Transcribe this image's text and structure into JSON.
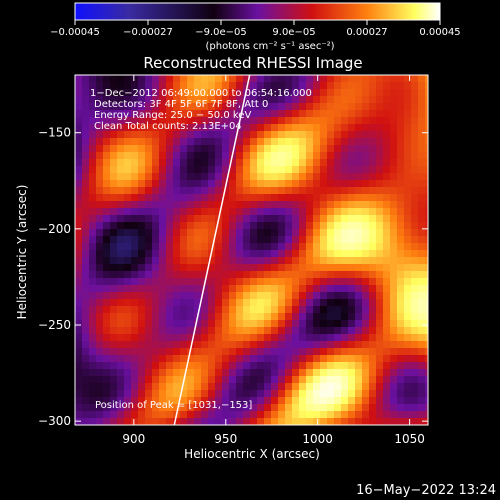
{
  "chart_data": {
    "type": "heatmap",
    "title": "Reconstructed RHESSI Image",
    "xlabel": "Heliocentric X (arcsec)",
    "ylabel": "Heliocentric Y (arcsec)",
    "xlim": [
      868,
      1060
    ],
    "ylim": [
      -302,
      -120
    ],
    "x_ticks": [
      900,
      950,
      1000,
      1050
    ],
    "x_tick_labels": [
      "900",
      "950",
      "1000",
      "1050"
    ],
    "y_ticks": [
      -150,
      -200,
      -250,
      -300
    ],
    "y_tick_labels": [
      "−150",
      "−200",
      "−250",
      "−300"
    ],
    "colorbar": {
      "min": -0.00045,
      "max": 0.00045,
      "ticks": [
        -0.00045,
        -0.00027,
        -9e-05,
        9e-05,
        0.00027,
        0.00045
      ],
      "tick_labels": [
        "−0.00045",
        "−0.00027",
        "−9.0e−05",
        "9.0e−05",
        "0.00027",
        "0.00045"
      ],
      "unit_label": "(photons cm⁻² s⁻¹ asec⁻²)",
      "colormap": [
        "#1010ff",
        "#3a2aa0",
        "#100010",
        "#6a10a0",
        "#d01010",
        "#ff8010",
        "#ffff60",
        "#ffffff"
      ]
    },
    "annotations": [
      "1−Dec−2012 06:49:00.000 to 06:54:16.000",
      "Detectors: 3F 4F 5F 6F 7F 8F, Att 0",
      "Energy Range: 25.0 − 50.0 keV",
      "Clean    Total counts: 2.13E+04"
    ],
    "peak_label": "Position of Peak = [1031,−153]",
    "peak": [
      1031,
      -153
    ],
    "limb_line": {
      "x": [
        922,
        963
      ],
      "y": [
        -302,
        -120
      ],
      "color": "#ffffff"
    },
    "field_description": "noisy clean image with positive/negative blobs, brighter toward the right side"
  },
  "footer": {
    "timestamp": "16−May−2022 13:24"
  }
}
